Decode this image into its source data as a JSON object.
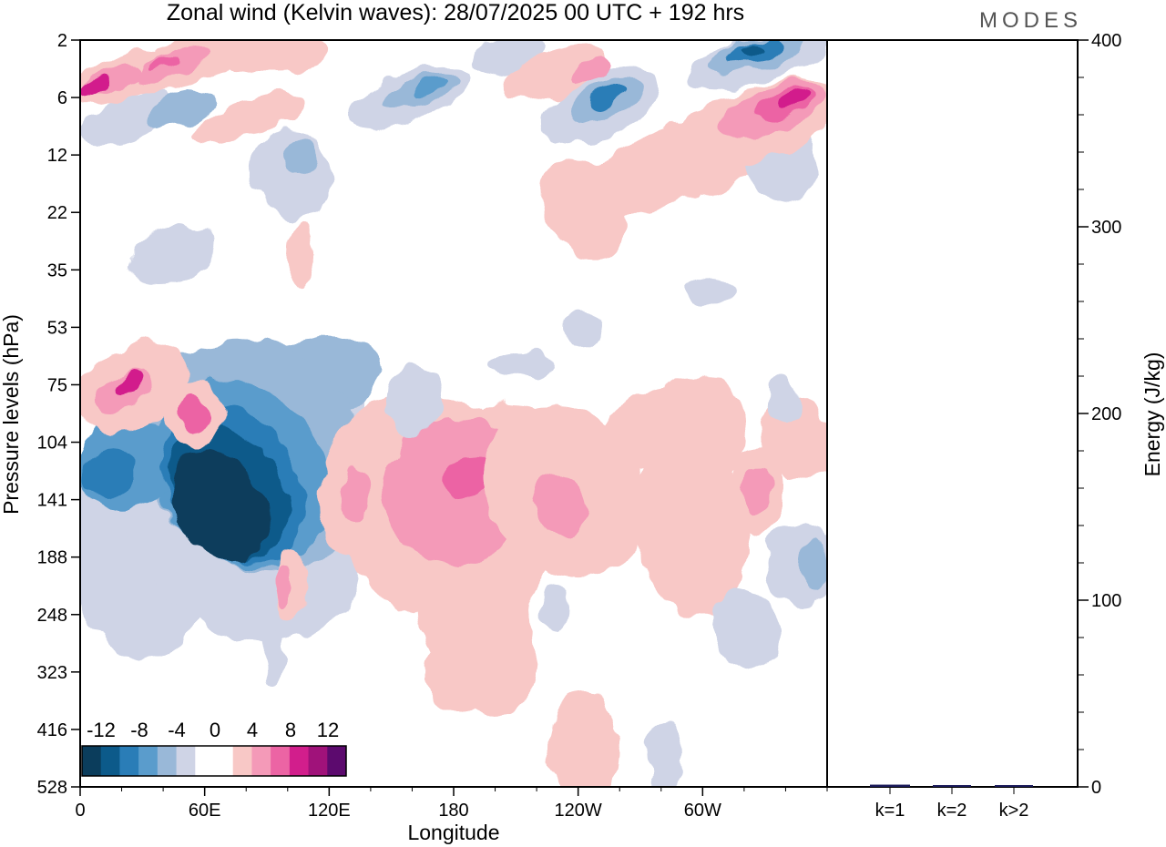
{
  "title": "Zonal wind (Kelvin waves):  28/07/2025  00 UTC  + 192 hrs",
  "logo": "MODES",
  "colors": {
    "neg_levels": [
      "#0b3d5c",
      "#0c5a8a",
      "#2a7db7",
      "#5a9ccc",
      "#99b8d8",
      "#cfd4e6"
    ],
    "pos_levels": [
      "#f8c8c6",
      "#f49ab8",
      "#ec64a4",
      "#d21e8c",
      "#a0127a",
      "#5c0a6e"
    ],
    "white": "#ffffff"
  },
  "chart_data": [
    {
      "type": "heatmap",
      "title": "Zonal wind (Kelvin waves):  28/07/2025  00 UTC  + 192 hrs",
      "xlabel": "Longitude",
      "ylabel": "Pressure levels (hPa)",
      "x_ticks": [
        "0",
        "60E",
        "120E",
        "180",
        "120W",
        "60W"
      ],
      "y_ticks": [
        "2",
        "6",
        "12",
        "22",
        "35",
        "53",
        "75",
        "104",
        "141",
        "188",
        "248",
        "323",
        "416",
        "528"
      ],
      "colorbar": {
        "labels": [
          "-12",
          "-8",
          "-4",
          "0",
          "4",
          "8",
          "12"
        ],
        "levels": [
          -14,
          -12,
          -10,
          -8,
          -6,
          -4,
          -2,
          2,
          4,
          6,
          8,
          10,
          12,
          14
        ]
      },
      "features": [
        {
          "name": "strong easterly core",
          "lon": 78,
          "level": "141",
          "value": -14
        },
        {
          "name": "westerly band upper left",
          "lon": 20,
          "level": "6",
          "value": 10
        },
        {
          "name": "westerly band upper right",
          "lon": 320,
          "level": "6",
          "value": 10
        },
        {
          "name": "easterly upper right",
          "lon": 310,
          "level": "2",
          "value": -10
        },
        {
          "name": "westerly mid",
          "lon": 190,
          "level": "141",
          "value": 8
        },
        {
          "name": "westerly lower left",
          "lon": 35,
          "level": "75",
          "value": 8
        }
      ]
    },
    {
      "type": "bar",
      "categories": [
        "k=1",
        "k=2",
        "k>2"
      ],
      "values": [
        1.2,
        0.4,
        0.8
      ],
      "ylabel": "Energy (J/kg)",
      "ylim": [
        0,
        400
      ],
      "y_ticks": [
        "0",
        "100",
        "200",
        "300",
        "400"
      ],
      "bar_color": "#1a1a5a"
    }
  ]
}
